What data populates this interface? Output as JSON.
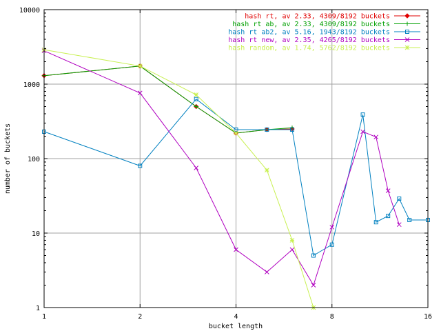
{
  "chart_data": {
    "type": "line",
    "title": "",
    "xlabel": "bucket length",
    "ylabel": "number of buckets",
    "xscale": "log2",
    "yscale": "log10",
    "xlim": [
      1,
      16
    ],
    "ylim": [
      1,
      10000
    ],
    "x_ticks": [
      1,
      2,
      4,
      8,
      16
    ],
    "x_tick_labels": [
      "1",
      "2",
      "4",
      "8",
      "16"
    ],
    "y_ticks": [
      1,
      10,
      100,
      1000,
      10000
    ],
    "y_tick_labels": [
      "1",
      "10",
      "100",
      "1000",
      "10000"
    ],
    "grid": true,
    "legend_position": "top-right",
    "series": [
      {
        "name": "hash rt, av 2.33, 4309/8192 buckets",
        "color": "#e00000",
        "marker": "diamond",
        "x": [
          1,
          2,
          3,
          4,
          5,
          6
        ],
        "y": [
          1300,
          1750,
          500,
          220,
          245,
          250
        ]
      },
      {
        "name": "hash rt ab, av 2.33, 4309/8192 buckets",
        "color": "#00a000",
        "marker": "plus",
        "x": [
          1,
          2,
          3,
          4,
          5,
          6
        ],
        "y": [
          1300,
          1750,
          500,
          220,
          245,
          260
        ]
      },
      {
        "name": "hash rt ab2, av 5.16, 1943/8192 buckets",
        "color": "#0080c0",
        "marker": "square",
        "x": [
          1,
          2,
          3,
          4,
          5,
          6,
          7,
          8,
          10,
          11,
          12,
          13,
          14,
          16
        ],
        "y": [
          230,
          80,
          630,
          245,
          245,
          245,
          5,
          7,
          390,
          14,
          17,
          29,
          15,
          15
        ]
      },
      {
        "name": "hash rt new, av 2.35, 4265/8192 buckets",
        "color": "#b000c0",
        "marker": "cross",
        "x": [
          1,
          2,
          3,
          4,
          5,
          6,
          7,
          8,
          10,
          11,
          12,
          13
        ],
        "y": [
          2800,
          760,
          75,
          6,
          3,
          6,
          2,
          12,
          230,
          195,
          37,
          13
        ]
      },
      {
        "name": "hash random, av 1.74, 5762/8192 buckets",
        "color": "#c8f050",
        "marker": "star",
        "x": [
          1,
          2,
          3,
          4,
          5,
          6,
          7
        ],
        "y": [
          2900,
          1750,
          720,
          220,
          70,
          8,
          1
        ]
      }
    ]
  }
}
